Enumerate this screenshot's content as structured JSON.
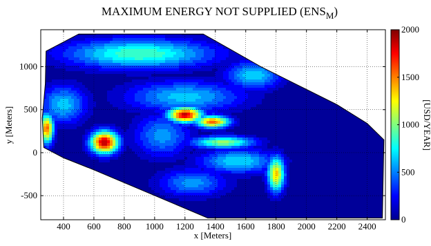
{
  "chart_data": {
    "type": "heatmap",
    "subtype": "filled-contour",
    "title": "MAXIMUM ENERGY NOT SUPPLIED (ENS",
    "title_subscript": "M",
    "title_suffix": ")",
    "xlabel": "x [Meters]",
    "ylabel": "y [Meters]",
    "colorbar_label": "[USD/YEAR]",
    "xlim": [
      250,
      2520
    ],
    "ylim": [
      -780,
      1430
    ],
    "xticks": [
      400,
      600,
      800,
      1000,
      1200,
      1400,
      1600,
      1800,
      2000,
      2200,
      2400
    ],
    "yticks": [
      -500,
      0,
      500,
      1000
    ],
    "colorbar_range": [
      0,
      2000
    ],
    "colorbar_ticks": [
      0,
      500,
      1000,
      1500,
      2000
    ],
    "grid": true,
    "colormap": "jet",
    "region_outline": [
      [
        285,
        1180
      ],
      [
        500,
        1380
      ],
      [
        1320,
        1380
      ],
      [
        1500,
        1200
      ],
      [
        1700,
        1000
      ],
      [
        1950,
        780
      ],
      [
        2200,
        560
      ],
      [
        2400,
        340
      ],
      [
        2510,
        150
      ],
      [
        2500,
        -760
      ],
      [
        1350,
        -760
      ],
      [
        600,
        -200
      ],
      [
        400,
        -60
      ],
      [
        270,
        60
      ],
      [
        260,
        400
      ],
      [
        280,
        800
      ]
    ],
    "peaks": [
      {
        "x": 670,
        "y": 120,
        "value": 1900,
        "sx": 90,
        "sy": 130
      },
      {
        "x": 1200,
        "y": 440,
        "value": 1850,
        "sx": 110,
        "sy": 90
      },
      {
        "x": 1380,
        "y": 360,
        "value": 1550,
        "sx": 110,
        "sy": 70
      },
      {
        "x": 290,
        "y": 280,
        "value": 1550,
        "sx": 45,
        "sy": 170
      },
      {
        "x": 1450,
        "y": 120,
        "value": 1050,
        "sx": 200,
        "sy": 70
      },
      {
        "x": 1800,
        "y": -250,
        "value": 1350,
        "sx": 55,
        "sy": 200
      },
      {
        "x": 1550,
        "y": -100,
        "value": 700,
        "sx": 250,
        "sy": 140
      },
      {
        "x": 900,
        "y": 1150,
        "value": 900,
        "sx": 480,
        "sy": 170
      },
      {
        "x": 1650,
        "y": 900,
        "value": 700,
        "sx": 180,
        "sy": 160
      },
      {
        "x": 1200,
        "y": 650,
        "value": 650,
        "sx": 380,
        "sy": 180
      },
      {
        "x": 400,
        "y": 560,
        "value": 650,
        "sx": 150,
        "sy": 220
      },
      {
        "x": 1050,
        "y": 200,
        "value": 550,
        "sx": 180,
        "sy": 250
      },
      {
        "x": 1250,
        "y": -350,
        "value": 550,
        "sx": 220,
        "sy": 160
      }
    ],
    "baseline_value": 40
  },
  "colors": {
    "frame": "#000000",
    "grid": "#000000",
    "outside": "#ffffff"
  }
}
